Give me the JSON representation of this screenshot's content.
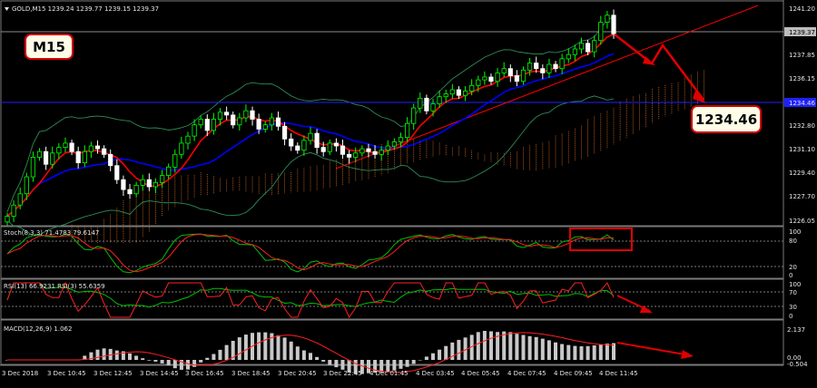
{
  "header": {
    "symbol_info": "GOLD,M15  1239.24 1239.77 1239.15 1239.37"
  },
  "annotations": {
    "timeframe_label": "M15",
    "target_label": "1234.46"
  },
  "price_axis": {
    "labels": [
      "1241.20",
      "1239.37",
      "1237.85",
      "1236.15",
      "1234.46",
      "1232.80",
      "1231.10",
      "1229.40",
      "1227.70",
      "1226.05"
    ],
    "current_price": "1239.37",
    "hline_price": "1234.46"
  },
  "indicators": {
    "stoch": {
      "label": "Stoch(8,3,3) 71.4783 79.6147",
      "levels": [
        "100",
        "80",
        "20",
        "0"
      ]
    },
    "rsi": {
      "label": "RSI(13) 66.9231  RSI(3) 55.6359",
      "levels": [
        "100",
        "70",
        "30",
        "0"
      ]
    },
    "macd": {
      "label": "MACD(12,26,9) 1.062",
      "levels": [
        "2.137",
        "0.00",
        "-0.504"
      ]
    }
  },
  "time_axis": {
    "labels": [
      "3 Dec 2018",
      "3 Dec 10:45",
      "3 Dec 12:45",
      "3 Dec 14:45",
      "3 Dec 16:45",
      "3 Dec 18:45",
      "3 Dec 20:45",
      "3 Dec 22:45",
      "4 Dec 01:45",
      "4 Dec 03:45",
      "4 Dec 05:45",
      "4 Dec 07:45",
      "4 Dec 09:45",
      "4 Dec 11:45"
    ]
  },
  "colors": {
    "background": "#000000",
    "bull": "#00ff00",
    "bear": "#ffffff",
    "ma_fast": "#ff0000",
    "ma_slow": "#0000ff",
    "bollinger": "#2e8b57",
    "grid": "#7a7a7a",
    "annotation": "#ff0000",
    "cloud": "#d2691e"
  },
  "chart_data": {
    "type": "candlestick",
    "symbol": "GOLD,M15",
    "ylim": [
      1226.05,
      1241.2
    ],
    "hline": 1234.46,
    "target": 1234.46,
    "last_price": 1239.37,
    "close": [
      1226.4,
      1227.2,
      1228.0,
      1229.2,
      1230.6,
      1231.0,
      1230.1,
      1230.9,
      1231.3,
      1231.6,
      1231.0,
      1230.2,
      1231.0,
      1231.4,
      1231.2,
      1230.8,
      1230.0,
      1229.0,
      1228.3,
      1228.0,
      1228.6,
      1229.0,
      1228.5,
      1228.8,
      1229.3,
      1229.9,
      1230.8,
      1231.6,
      1232.1,
      1232.9,
      1233.3,
      1232.5,
      1233.3,
      1233.8,
      1233.6,
      1232.9,
      1233.4,
      1233.9,
      1233.3,
      1232.6,
      1232.9,
      1233.4,
      1232.8,
      1231.9,
      1231.4,
      1231.1,
      1231.8,
      1232.3,
      1231.3,
      1231.0,
      1231.6,
      1231.4,
      1230.8,
      1230.6,
      1230.9,
      1231.2,
      1231.0,
      1230.8,
      1231.1,
      1231.4,
      1231.7,
      1232.0,
      1233.0,
      1234.1,
      1234.8,
      1233.9,
      1234.4,
      1234.9,
      1235.1,
      1235.4,
      1235.0,
      1235.3,
      1235.7,
      1236.1,
      1236.3,
      1236.0,
      1236.6,
      1236.9,
      1236.4,
      1236.0,
      1236.8,
      1237.3,
      1236.9,
      1236.6,
      1237.2,
      1236.9,
      1237.6,
      1237.9,
      1238.3,
      1238.7,
      1238.1,
      1238.9,
      1240.2,
      1240.7,
      1239.37
    ]
  }
}
